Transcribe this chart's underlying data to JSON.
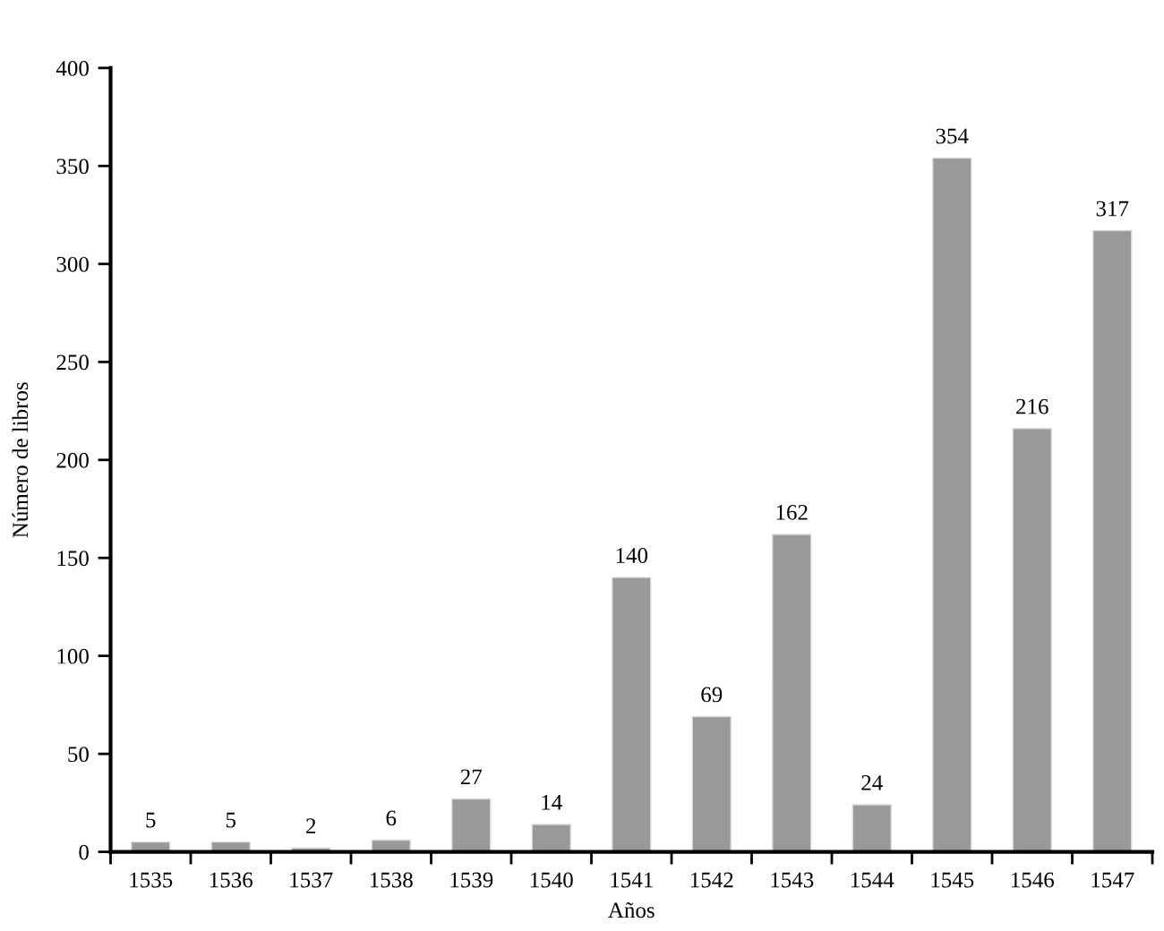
{
  "chart_data": {
    "type": "bar",
    "xlabel": "Años",
    "ylabel": "Número de libros",
    "categories": [
      "1535",
      "1536",
      "1537",
      "1538",
      "1539",
      "1540",
      "1541",
      "1542",
      "1543",
      "1544",
      "1545",
      "1546",
      "1547"
    ],
    "values": [
      5,
      5,
      2,
      6,
      27,
      14,
      140,
      69,
      162,
      24,
      354,
      216,
      317
    ],
    "color": "#999999",
    "ylim": [
      0,
      400
    ],
    "yticks": [
      0,
      50,
      100,
      150,
      200,
      250,
      300,
      350,
      400
    ],
    "data_labels": true,
    "grid": false,
    "legend": false
  }
}
